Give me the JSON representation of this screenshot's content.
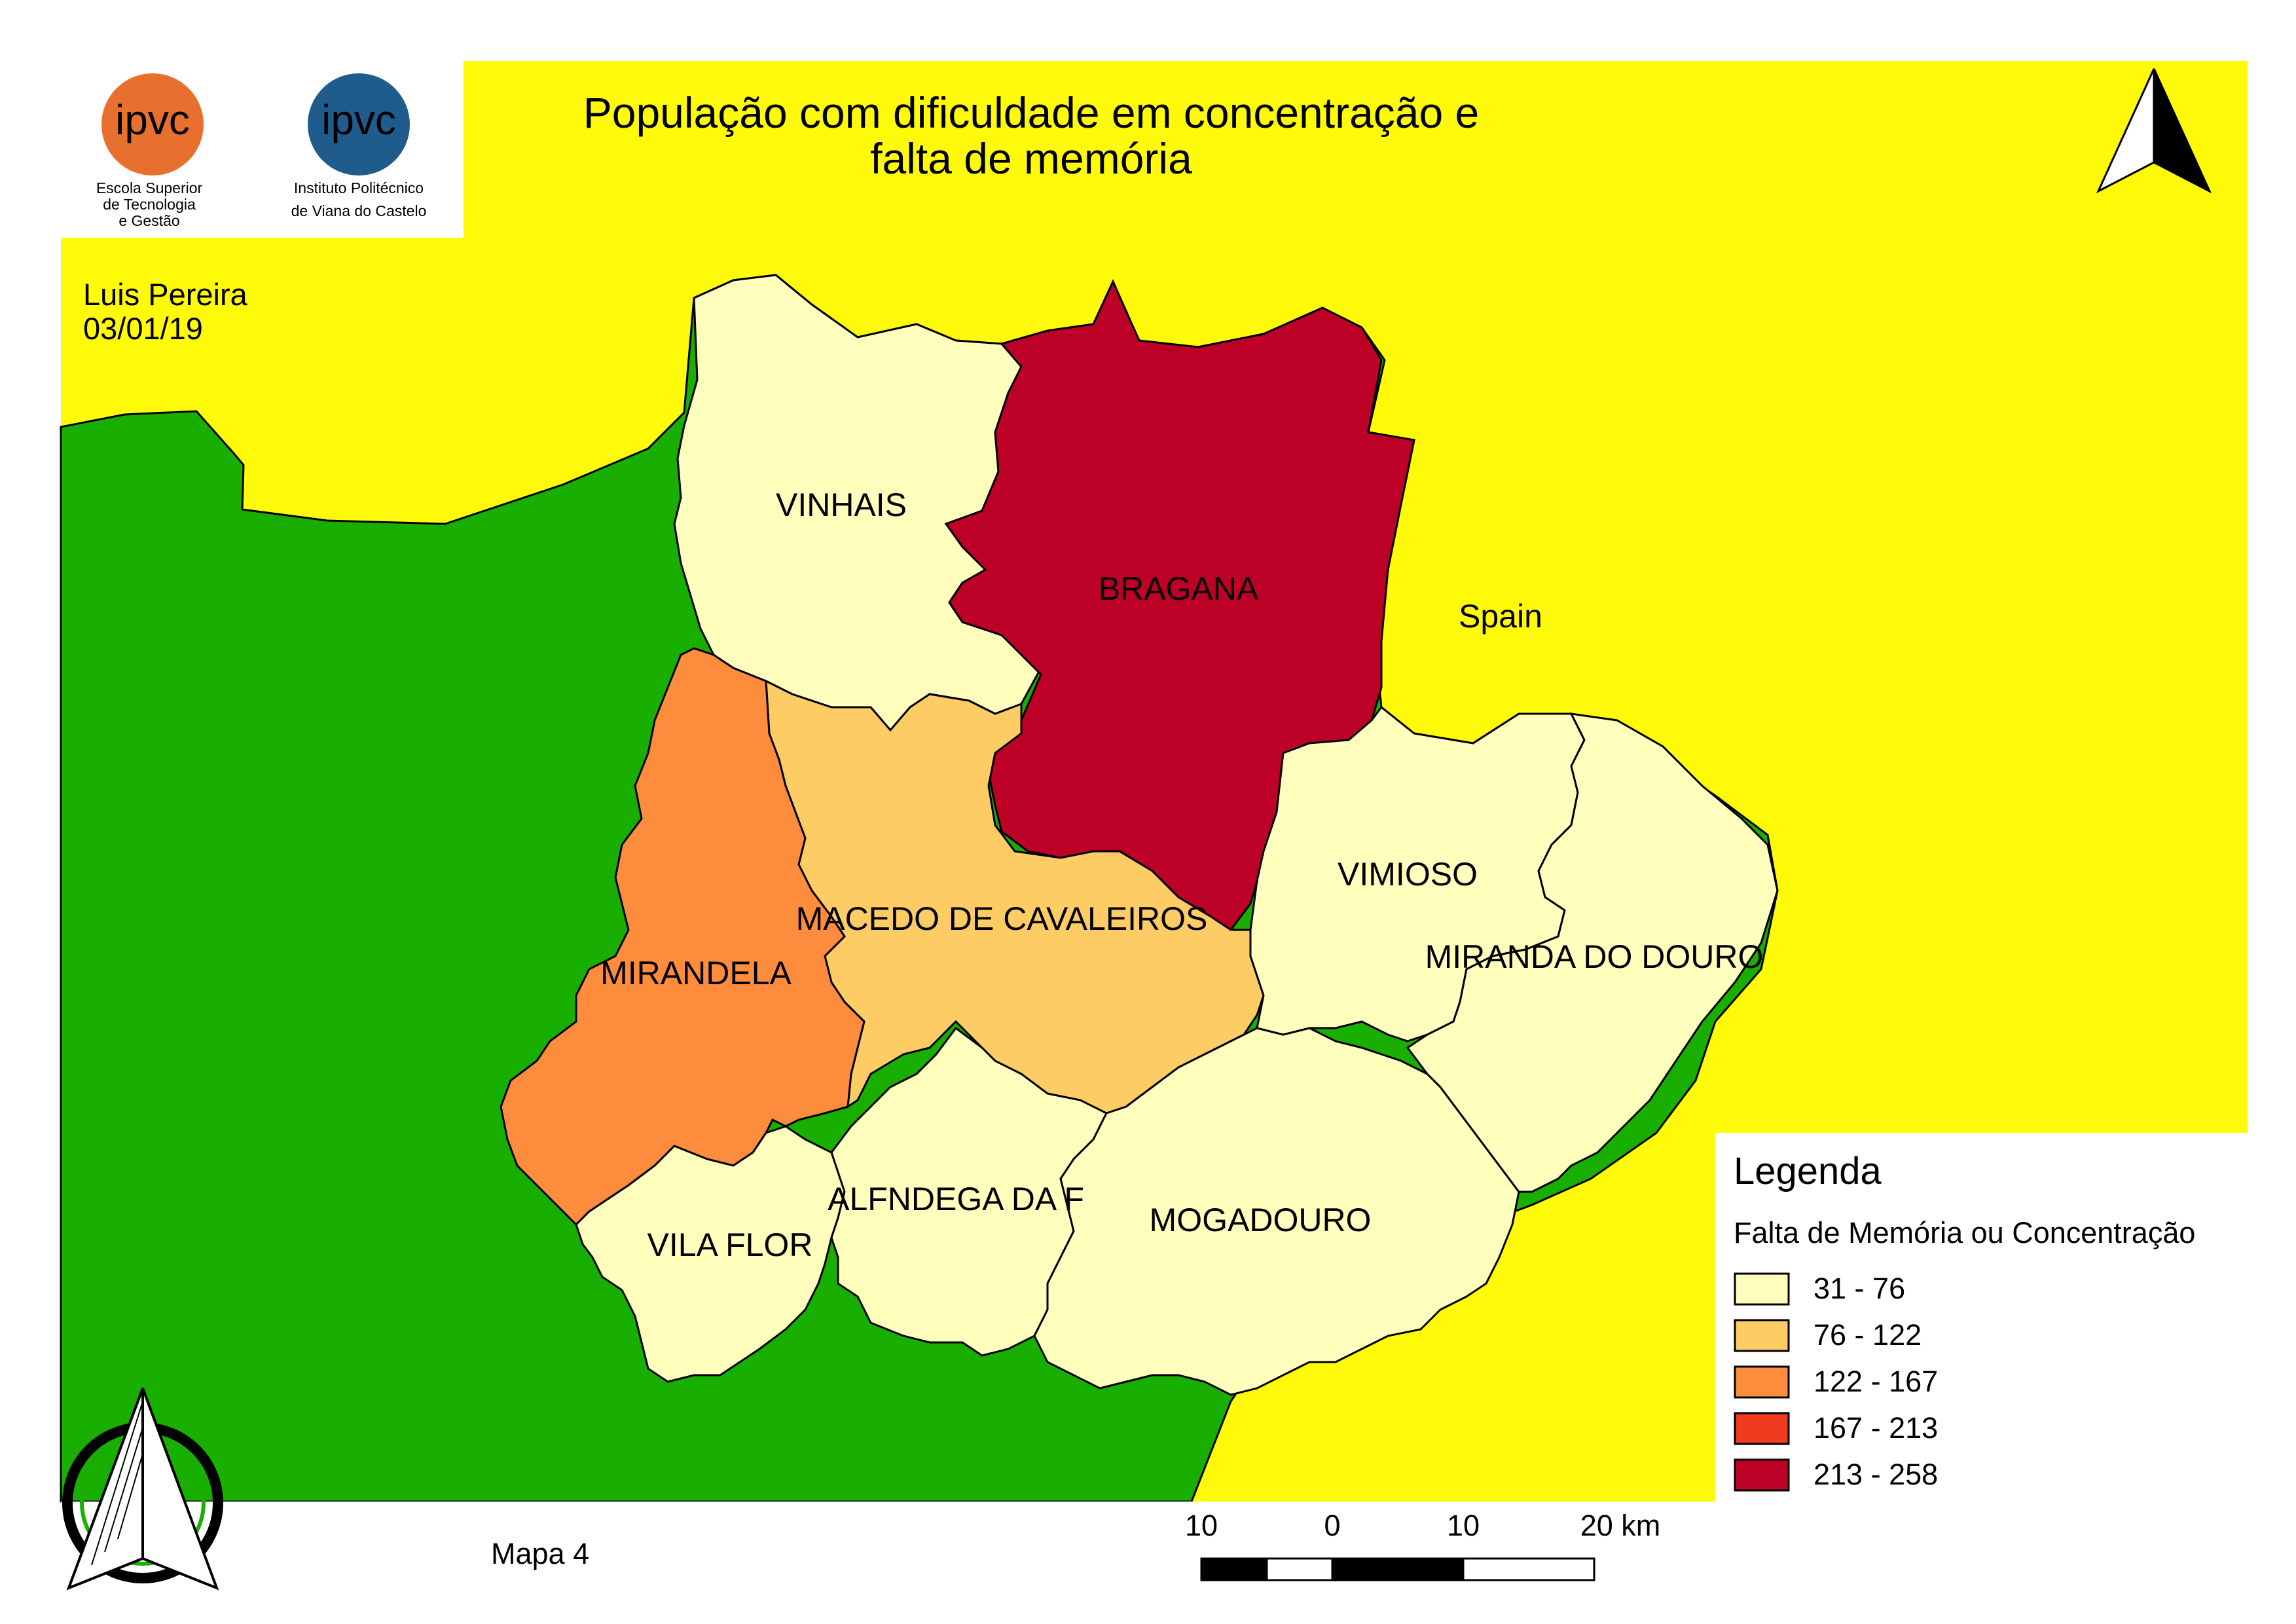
{
  "title_line1": "População com dificuldade em concentração e",
  "title_line2": "falta de memória",
  "author": "Luis Pereira",
  "date": "03/01/19",
  "map_number": "Mapa 4",
  "logos": {
    "estg_line1": "Escola Superior",
    "estg_line2": "de Tecnologia",
    "estg_line3": "e Gestão",
    "ipvc_line1": "Instituto Politécnico",
    "ipvc_line2": "de Viana do Castelo",
    "estg_color": "#e8702e",
    "ipvc_color": "#1f5c8c"
  },
  "colors": {
    "spain": "#fff90a",
    "portugal": "#19af00"
  },
  "country_label": "Spain",
  "municipalities": [
    {
      "name": "VINHAIS",
      "value_class": "31 - 76",
      "color": "#fffebc"
    },
    {
      "name": "BRAGANA",
      "value_class": "213 - 258",
      "color": "#bd0026"
    },
    {
      "name": "MACEDO DE CAVALEIROS",
      "value_class": "76 - 122",
      "color": "#fecc64"
    },
    {
      "name": "MIRANDELA",
      "value_class": "122 - 167",
      "color": "#fd8d3c"
    },
    {
      "name": "VIMIOSO",
      "value_class": "31 - 76",
      "color": "#fffebc"
    },
    {
      "name": "MIRANDA DO DOURO",
      "value_class": "31 - 76",
      "color": "#fffebc"
    },
    {
      "name": "ALFNDEGA DA F",
      "value_class": "31 - 76",
      "color": "#fffebc"
    },
    {
      "name": "MOGADOURO",
      "value_class": "31 - 76",
      "color": "#fffebc"
    },
    {
      "name": "VILA FLOR",
      "value_class": "31 - 76",
      "color": "#fffebc"
    }
  ],
  "legend": {
    "title": "Legenda",
    "subtitle": "Falta de Memória ou Concentração",
    "items": [
      {
        "label": "31 - 76",
        "color": "#fffebc"
      },
      {
        "label": "76 - 122",
        "color": "#fecc64"
      },
      {
        "label": "122 - 167",
        "color": "#fd8d3c"
      },
      {
        "label": "167 - 213",
        "color": "#f03b20"
      },
      {
        "label": "213 - 258",
        "color": "#bd0026"
      }
    ]
  },
  "scale_bar": {
    "labels": [
      "10",
      "0",
      "10",
      "20 km"
    ]
  }
}
